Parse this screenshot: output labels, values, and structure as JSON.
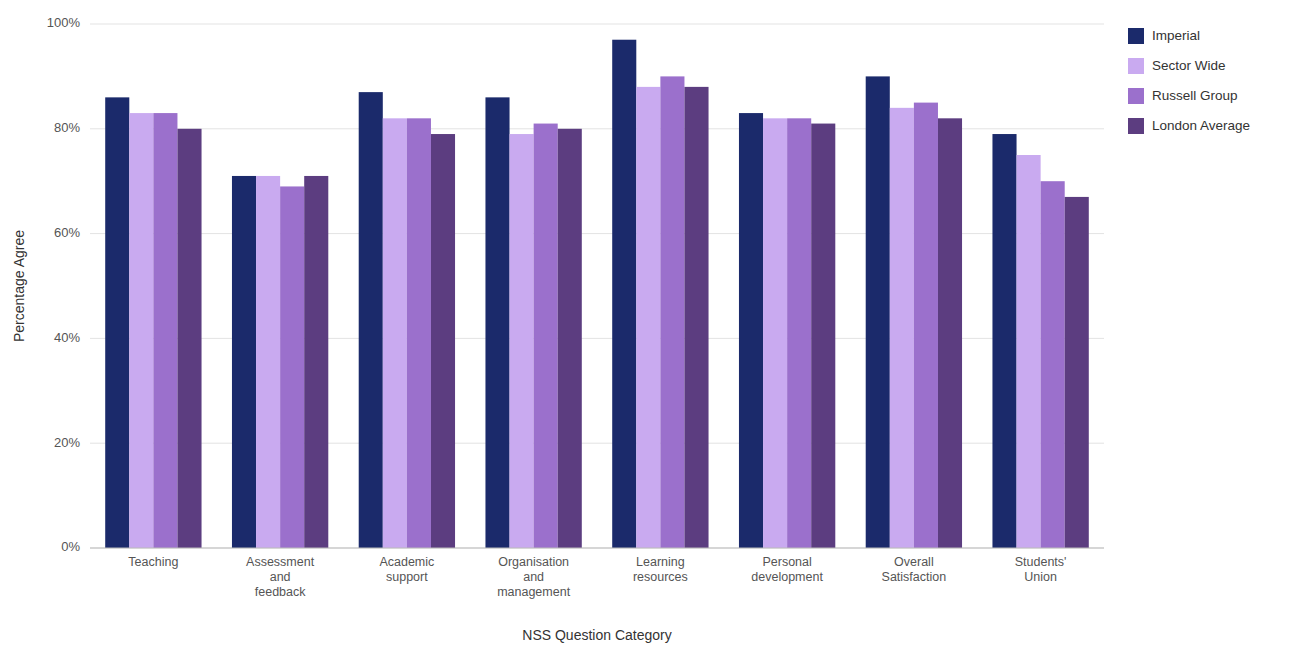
{
  "chart_data": {
    "type": "bar",
    "xlabel": "NSS Question Category",
    "ylabel": "Percentage Agree",
    "categories": [
      "Teaching",
      "Assessment\nand\nfeedback",
      "Academic\nsupport",
      "Organisation\nand\nmanagement",
      "Learning\nresources",
      "Personal\ndevelopment",
      "Overall\nSatisfaction",
      "Students'\nUnion"
    ],
    "series": [
      {
        "name": "Imperial",
        "color": "#1b2a6b",
        "values": [
          86,
          71,
          87,
          86,
          97,
          83,
          90,
          79
        ]
      },
      {
        "name": "Sector Wide",
        "color": "#c9aaf0",
        "values": [
          83,
          71,
          82,
          79,
          88,
          82,
          84,
          75
        ]
      },
      {
        "name": "Russell Group",
        "color": "#9b70cc",
        "values": [
          83,
          69,
          82,
          81,
          90,
          82,
          85,
          70
        ]
      },
      {
        "name": "London Average",
        "color": "#5c3d80",
        "values": [
          80,
          71,
          79,
          80,
          88,
          81,
          82,
          67
        ]
      }
    ],
    "ylim": [
      0,
      100
    ],
    "yticks": [
      {
        "value": 0,
        "label": "0%"
      },
      {
        "value": 20,
        "label": "20%"
      },
      {
        "value": 40,
        "label": "40%"
      },
      {
        "value": 60,
        "label": "60%"
      },
      {
        "value": 80,
        "label": "80%"
      },
      {
        "value": 100,
        "label": "100%"
      }
    ],
    "grid": true,
    "legend": "right"
  }
}
